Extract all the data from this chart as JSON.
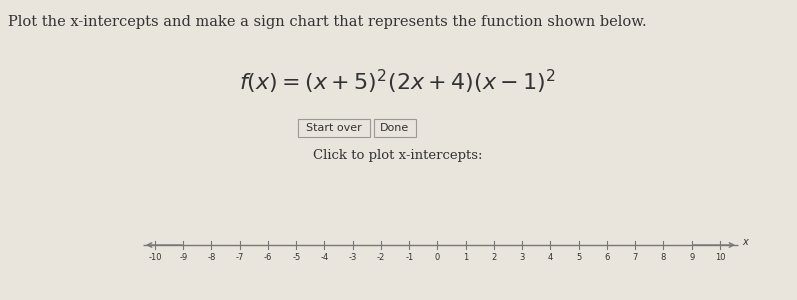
{
  "title_text": "Plot the x-intercepts and make a sign chart that represents the function shown below.",
  "formula_latex": "$f(x) = (x+5)^{2}(2x+4)(x-1)^{2}$",
  "button1": "Start over",
  "button2": "Done",
  "click_label": "Click to plot x-intercepts:",
  "number_line_min": -10,
  "number_line_max": 10,
  "background_color": "#e9e5dd",
  "title_fontsize": 10.5,
  "formula_fontsize": 16,
  "button_fontsize": 8,
  "click_fontsize": 9.5,
  "tick_fontsize": 6,
  "axis_label": "x",
  "line_color": "#777777",
  "text_color": "#333333",
  "button_border_color": "#999999",
  "button_bg": "#e9e5dd"
}
